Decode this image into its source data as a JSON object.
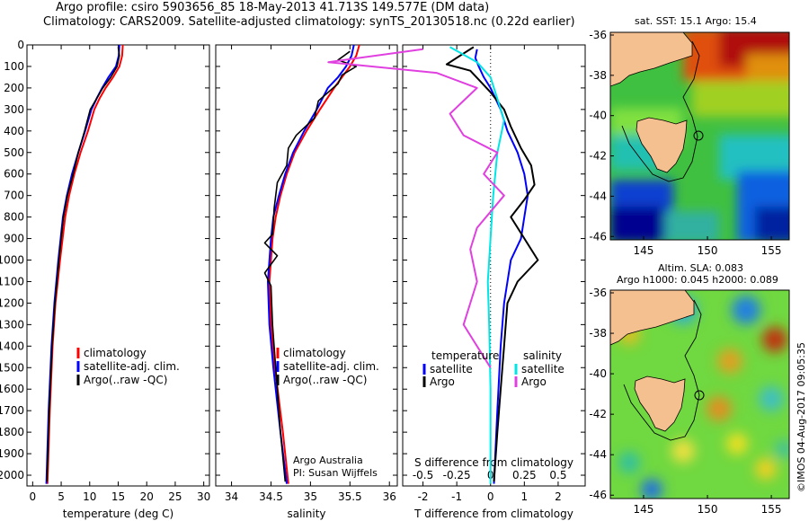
{
  "header": {
    "line1": "Argo profile: csiro 5903656_85 18-May-2013 41.713S 149.577E (DM data)",
    "line2": "Climatology: CARS2009. Satellite-adjusted climatology: synTS_20130518.nc (0.22d earlier)"
  },
  "footer": {
    "credit_line1": "Argo Australia",
    "credit_line2": "PI: Susan Wijffels",
    "imos_stamp": "©IMOS 04-Aug-2017 09:05:35"
  },
  "map_sst": {
    "title": "sat. SST: 15.1  Argo: 15.4",
    "lat_ticks": [
      "-36",
      "-38",
      "-40",
      "-42",
      "-44",
      "-46"
    ],
    "lon_ticks": [
      "145",
      "150",
      "155"
    ]
  },
  "map_sla": {
    "title1": "Altim. SLA: 0.083",
    "title2": "Argo h1000: 0.045 h2000: 0.089",
    "lat_ticks": [
      "-36",
      "-38",
      "-40",
      "-42",
      "-44",
      "-46"
    ],
    "lon_ticks": [
      "145",
      "150",
      "155"
    ]
  },
  "colors": {
    "climatology": "#ff0000",
    "satellite": "#0000ff",
    "argo": "#000000",
    "salinity_satellite": "#00e5e5",
    "salinity_argo": "#e040e0",
    "land": "#f5c090"
  },
  "chart_data": [
    {
      "type": "line",
      "xlabel": "temperature (deg C)",
      "ylabel": "",
      "xlim": [
        -1,
        31
      ],
      "ylim": [
        2050,
        0
      ],
      "xticks": [
        "0",
        "5",
        "10",
        "15",
        "20",
        "25",
        "30"
      ],
      "yticks": [
        "0",
        "100",
        "200",
        "300",
        "400",
        "500",
        "600",
        "700",
        "800",
        "900",
        "1000",
        "1100",
        "1200",
        "1300",
        "1400",
        "1500",
        "1600",
        "1700",
        "1800",
        "1900",
        "2000"
      ],
      "legend": [
        "climatology",
        "satellite-adj. clim.",
        "Argo(..raw -QC)"
      ],
      "series": [
        {
          "name": "climatology",
          "x": [
            15.8,
            15.7,
            15.2,
            14.1,
            12.8,
            11.7,
            10.8,
            9.7,
            8.4,
            7.3,
            6.4,
            5.7,
            4.8,
            4.0,
            3.5,
            3.0,
            2.6
          ],
          "y": [
            0,
            50,
            100,
            150,
            200,
            250,
            300,
            400,
            500,
            600,
            700,
            800,
            1000,
            1200,
            1400,
            1700,
            2040
          ]
        },
        {
          "name": "satellite-adj. clim.",
          "x": [
            15.2,
            15.1,
            14.6,
            13.3,
            12.2,
            11.2,
            10.3,
            9.2,
            8.0,
            6.9,
            6.0,
            5.3,
            4.5,
            3.8,
            3.3,
            2.8,
            2.4
          ],
          "y": [
            0,
            50,
            100,
            150,
            200,
            250,
            300,
            400,
            500,
            600,
            700,
            800,
            1000,
            1200,
            1400,
            1700,
            2040
          ]
        },
        {
          "name": "Argo(..raw -QC)",
          "x": [
            15.0,
            15.2,
            14.8,
            13.7,
            12.3,
            11.2,
            10.1,
            9.1,
            8.0,
            7.1,
            6.1,
            5.4,
            4.6,
            3.9,
            3.4,
            2.9,
            2.5
          ],
          "y": [
            10,
            50,
            100,
            150,
            200,
            250,
            300,
            400,
            500,
            600,
            700,
            800,
            1000,
            1200,
            1400,
            1700,
            2030
          ]
        }
      ]
    },
    {
      "type": "line",
      "xlabel": "salinity",
      "ylabel": "",
      "xlim": [
        33.8,
        36.1
      ],
      "ylim": [
        2050,
        0
      ],
      "xticks": [
        "34",
        "34.5",
        "35",
        "35.5",
        "36"
      ],
      "legend": [
        "climatology",
        "satellite-adj. clim.",
        "Argo(..raw -QC)"
      ],
      "series": [
        {
          "name": "climatology",
          "x": [
            35.62,
            35.58,
            35.5,
            35.4,
            35.3,
            35.12,
            34.95,
            34.8,
            34.7,
            34.62,
            34.56,
            34.52,
            34.48,
            34.5,
            34.55,
            34.65,
            34.72
          ],
          "y": [
            0,
            50,
            100,
            150,
            200,
            300,
            400,
            500,
            600,
            700,
            800,
            900,
            1100,
            1300,
            1500,
            1800,
            2040
          ]
        },
        {
          "name": "satellite-adj. clim.",
          "x": [
            35.55,
            35.52,
            35.45,
            35.35,
            35.22,
            35.08,
            34.92,
            34.78,
            34.68,
            34.6,
            34.53,
            34.5,
            34.46,
            34.48,
            34.53,
            34.62,
            34.7
          ],
          "y": [
            0,
            50,
            100,
            150,
            200,
            300,
            400,
            500,
            600,
            700,
            800,
            900,
            1100,
            1300,
            1500,
            1800,
            2040
          ]
        },
        {
          "name": "Argo(..raw -QC)",
          "x": [
            35.5,
            35.35,
            35.58,
            35.4,
            35.35,
            35.1,
            35.05,
            34.82,
            34.72,
            34.7,
            34.58,
            34.54,
            34.52,
            34.42,
            34.58,
            34.42,
            34.5,
            34.52,
            34.56,
            34.62,
            34.68
          ],
          "y": [
            30,
            70,
            100,
            140,
            180,
            260,
            340,
            420,
            480,
            560,
            640,
            760,
            880,
            920,
            980,
            1060,
            1120,
            1300,
            1500,
            1800,
            2030
          ]
        }
      ]
    },
    {
      "type": "line",
      "xlabel": "T difference from climatology",
      "xlabel_top": "S difference from climatology",
      "ylabel": "",
      "xlim": [
        -2.6,
        2.8
      ],
      "ylim": [
        2050,
        0
      ],
      "xticks": [
        "-2",
        "-1",
        "0",
        "1",
        "2"
      ],
      "xticks_top": [
        "-0.5",
        "-0.25",
        "0",
        "0.25",
        "0.5"
      ],
      "legend_headers": [
        "temperature",
        "salinity"
      ],
      "legend": [
        "satellite",
        "Argo",
        "satellite",
        "Argo"
      ],
      "series": [
        {
          "name": "temperature satellite",
          "x": [
            -0.4,
            -0.45,
            -0.35,
            -0.2,
            0.0,
            0.3,
            0.5,
            0.8,
            1.0,
            1.1,
            1.0,
            0.9,
            0.6,
            0.4,
            0.3,
            0.2,
            0.1
          ],
          "y": [
            20,
            60,
            100,
            150,
            200,
            300,
            400,
            500,
            600,
            700,
            800,
            900,
            1000,
            1200,
            1400,
            1700,
            2040
          ]
        },
        {
          "name": "temperature Argo",
          "x": [
            -0.5,
            -1.3,
            -0.6,
            -0.3,
            0.0,
            0.4,
            0.6,
            0.9,
            1.2,
            1.3,
            1.0,
            0.6,
            1.4,
            0.8,
            0.5,
            0.4,
            0.3,
            0.2,
            0.1
          ],
          "y": [
            10,
            90,
            120,
            170,
            220,
            300,
            380,
            480,
            560,
            650,
            720,
            800,
            1000,
            1100,
            1200,
            1400,
            1600,
            1800,
            2030
          ]
        },
        {
          "name": "salinity satellite",
          "x": [
            -0.3,
            -0.1,
            0.0,
            0.05,
            0.1,
            0.05,
            0.02,
            0.0,
            -0.02,
            -0.01,
            0.0,
            0.0
          ],
          "y": [
            10,
            80,
            150,
            250,
            350,
            500,
            700,
            900,
            1100,
            1300,
            1600,
            2040
          ]
        },
        {
          "name": "salinity Argo",
          "x": [
            -0.5,
            -1.2,
            -0.4,
            -0.1,
            -0.3,
            -0.2,
            0.05,
            -0.05,
            0.1,
            -0.1,
            -0.15,
            -0.1,
            -0.2,
            0.0
          ],
          "y": [
            20,
            80,
            130,
            200,
            320,
            420,
            500,
            600,
            700,
            850,
            950,
            1100,
            1300,
            1500
          ]
        }
      ]
    }
  ]
}
